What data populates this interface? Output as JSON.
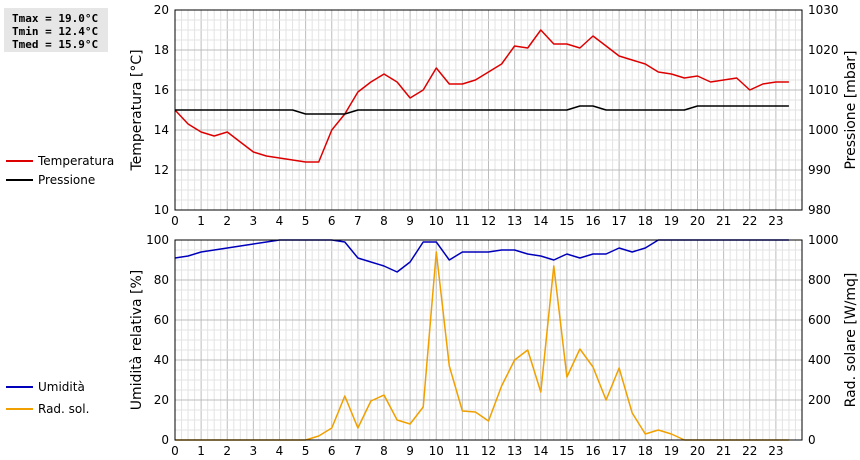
{
  "stats": {
    "tmax": "Tmax = 19.0°C",
    "tmin": "Tmin = 12.4°C",
    "tmed": "Tmed = 15.9°C"
  },
  "chart_data": [
    {
      "type": "line",
      "x": [
        0,
        0.5,
        1,
        1.5,
        2,
        2.5,
        3,
        3.5,
        4,
        4.5,
        5,
        5.5,
        6,
        6.5,
        7,
        7.5,
        8,
        8.5,
        9,
        9.5,
        10,
        10.5,
        11,
        11.5,
        12,
        12.5,
        13,
        13.5,
        14,
        14.5,
        15,
        15.5,
        16,
        16.5,
        17,
        17.5,
        18,
        18.5,
        19,
        19.5,
        20,
        20.5,
        21,
        21.5,
        22,
        22.5,
        23,
        23.5
      ],
      "xticks": [
        0,
        1,
        2,
        3,
        4,
        5,
        6,
        7,
        8,
        9,
        10,
        11,
        12,
        13,
        14,
        15,
        16,
        17,
        18,
        19,
        20,
        21,
        22,
        23
      ],
      "xlim": [
        0,
        24
      ],
      "ylabel": "Temperatura [°C]",
      "ylim": [
        10,
        20
      ],
      "yticks": [
        10,
        12,
        14,
        16,
        18,
        20
      ],
      "y2label": "Pressione [mbar]",
      "y2lim": [
        980,
        1030
      ],
      "y2ticks": [
        980,
        990,
        1000,
        1010,
        1020,
        1030
      ],
      "series": [
        {
          "name": "Temperatura",
          "color": "#dd0000",
          "axis": "left",
          "values": [
            15.0,
            14.3,
            13.9,
            13.7,
            13.9,
            13.4,
            12.9,
            12.7,
            12.6,
            12.5,
            12.4,
            12.4,
            14.0,
            14.8,
            15.9,
            16.4,
            16.8,
            16.4,
            15.6,
            16.0,
            17.1,
            16.3,
            16.3,
            16.5,
            16.9,
            17.3,
            18.2,
            18.1,
            19.0,
            18.3,
            18.3,
            18.1,
            18.7,
            18.2,
            17.7,
            17.5,
            17.3,
            16.9,
            16.8,
            16.6,
            16.7,
            16.4,
            16.5,
            16.6,
            16.0,
            16.3,
            16.4,
            16.4
          ]
        },
        {
          "name": "Pressione",
          "color": "#000000",
          "axis": "right",
          "values": [
            1005.0,
            1005.0,
            1005.0,
            1005.0,
            1005.0,
            1005.0,
            1005.0,
            1005.0,
            1005.0,
            1005.0,
            1004.0,
            1004.0,
            1004.0,
            1004.0,
            1005.0,
            1005.0,
            1005.0,
            1005.0,
            1005.0,
            1005.0,
            1005.0,
            1005.0,
            1005.0,
            1005.0,
            1005.0,
            1005.0,
            1005.0,
            1005.0,
            1005.0,
            1005.0,
            1005.0,
            1006.0,
            1006.0,
            1005.0,
            1005.0,
            1005.0,
            1005.0,
            1005.0,
            1005.0,
            1005.0,
            1006.0,
            1006.0,
            1006.0,
            1006.0,
            1006.0,
            1006.0,
            1006.0,
            1006.0
          ]
        }
      ]
    },
    {
      "type": "line",
      "x": [
        0,
        0.5,
        1,
        1.5,
        2,
        2.5,
        3,
        3.5,
        4,
        4.5,
        5,
        5.5,
        6,
        6.5,
        7,
        7.5,
        8,
        8.5,
        9,
        9.5,
        10,
        10.5,
        11,
        11.5,
        12,
        12.5,
        13,
        13.5,
        14,
        14.5,
        15,
        15.5,
        16,
        16.5,
        17,
        17.5,
        18,
        18.5,
        19,
        19.5,
        20,
        20.5,
        21,
        21.5,
        22,
        22.5,
        23,
        23.5
      ],
      "xticks": [
        0,
        1,
        2,
        3,
        4,
        5,
        6,
        7,
        8,
        9,
        10,
        11,
        12,
        13,
        14,
        15,
        16,
        17,
        18,
        19,
        20,
        21,
        22,
        23
      ],
      "xlim": [
        0,
        24
      ],
      "ylabel": "Umidità relativa [%]",
      "ylim": [
        0,
        100
      ],
      "yticks": [
        0,
        20,
        40,
        60,
        80,
        100
      ],
      "y2label": "Rad. solare [W/mq]",
      "y2lim": [
        0,
        1000
      ],
      "y2ticks": [
        0,
        200,
        400,
        600,
        800,
        1000
      ],
      "series": [
        {
          "name": "Umidità",
          "color": "#0000bb",
          "axis": "left",
          "values": [
            91,
            92,
            94,
            95,
            96,
            97,
            98,
            99,
            100,
            100,
            100,
            100,
            100,
            99,
            91,
            89,
            87,
            84,
            89,
            99,
            99,
            90,
            94,
            94,
            94,
            95,
            95,
            93,
            92,
            90,
            93,
            91,
            93,
            93,
            96,
            94,
            96,
            100,
            100,
            100,
            100,
            100,
            100,
            100,
            100,
            100,
            100,
            100
          ]
        },
        {
          "name": "Rad. sol.",
          "color": "#f0a000",
          "axis": "right",
          "values": [
            0,
            0,
            0,
            0,
            0,
            0,
            0,
            0,
            0,
            0,
            0,
            20,
            60,
            220,
            60,
            195,
            225,
            100,
            80,
            165,
            940,
            370,
            145,
            140,
            95,
            270,
            400,
            450,
            240,
            870,
            315,
            455,
            365,
            200,
            360,
            135,
            30,
            50,
            30,
            0,
            0,
            0,
            0,
            0,
            0,
            0,
            0,
            0
          ]
        }
      ]
    }
  ]
}
